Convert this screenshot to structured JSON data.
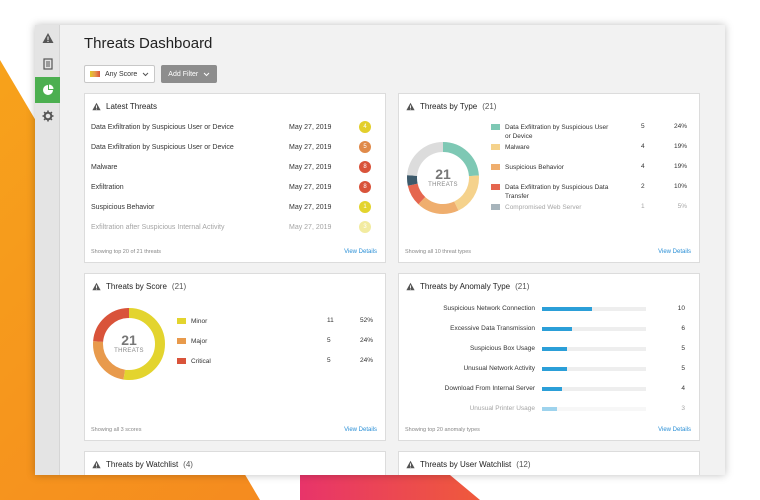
{
  "colors": {
    "accent_green": "#4caf50",
    "link": "#2a8fd6",
    "bar": "#2b9fd8",
    "score_minor": "#e3d42e",
    "score_major": "#e89a4c",
    "score_critical": "#d9533a"
  },
  "sidebar": {
    "items": [
      {
        "icon": "warning-icon",
        "active": false
      },
      {
        "icon": "document-icon",
        "active": false
      },
      {
        "icon": "pie-chart-icon",
        "active": true
      },
      {
        "icon": "gear-icon",
        "active": false
      }
    ]
  },
  "header": {
    "title": "Threats Dashboard",
    "score_filter": "Any Score",
    "add_filter": "Add Filter"
  },
  "latest": {
    "title": "Latest Threats",
    "rows": [
      {
        "name": "Data Exfiltration by Suspicious User or Device",
        "date": "May 27, 2019",
        "score": "4",
        "color": "#e3cf2c"
      },
      {
        "name": "Data Exfiltration by Suspicious User or Device",
        "date": "May 27, 2019",
        "score": "5",
        "color": "#e08a4a"
      },
      {
        "name": "Malware",
        "date": "May 27, 2019",
        "score": "8",
        "color": "#d9533a"
      },
      {
        "name": "Exfiltration",
        "date": "May 27, 2019",
        "score": "8",
        "color": "#d9533a"
      },
      {
        "name": "Suspicious Behavior",
        "date": "May 27, 2019",
        "score": "1",
        "color": "#e3d42e"
      },
      {
        "name": "Exfiltration after Suspicious Internal Activity",
        "date": "May 27, 2019",
        "score": "3",
        "color": "#e3d42e"
      }
    ],
    "footer": "Showing top 20 of 21 threats",
    "link": "View Details"
  },
  "by_type": {
    "title": "Threats by Type",
    "count": "(21)",
    "total": "21",
    "total_label": "THREATS",
    "items": [
      {
        "label": "Data Exfiltration by Suspicious User or Device",
        "n": "5",
        "pct": "24%",
        "value": 5,
        "color": "#7ec8b4"
      },
      {
        "label": "Malware",
        "n": "4",
        "pct": "19%",
        "value": 4,
        "color": "#f5d28c"
      },
      {
        "label": "Suspicious Behavior",
        "n": "4",
        "pct": "19%",
        "value": 4,
        "color": "#efae6e"
      },
      {
        "label": "Data Exfiltration by Suspicious Data Transfer",
        "n": "2",
        "pct": "10%",
        "value": 2,
        "color": "#e5664f"
      },
      {
        "label": "Compromised Web Server",
        "n": "1",
        "pct": "5%",
        "value": 1,
        "color": "#3d5a6b"
      }
    ],
    "rest_value": 5,
    "rest_color": "#dcdcdc",
    "footer": "Showing all 10 threat types",
    "link": "View Details"
  },
  "by_score": {
    "title": "Threats by Score",
    "count": "(21)",
    "total": "21",
    "total_label": "THREATS",
    "items": [
      {
        "label": "Minor",
        "n": "11",
        "pct": "52%",
        "value": 11,
        "color": "#e3d42e"
      },
      {
        "label": "Major",
        "n": "5",
        "pct": "24%",
        "value": 5,
        "color": "#e89a4c"
      },
      {
        "label": "Critical",
        "n": "5",
        "pct": "24%",
        "value": 5,
        "color": "#d9533a"
      }
    ],
    "footer": "Showing all 3 scores",
    "link": "View Details"
  },
  "by_anomaly": {
    "title": "Threats by Anomaly Type",
    "count": "(21)",
    "max": 10,
    "items": [
      {
        "label": "Suspicious Network Connection",
        "value": 10
      },
      {
        "label": "Excessive Data Transmission",
        "value": 6
      },
      {
        "label": "Suspicious Box Usage",
        "value": 5
      },
      {
        "label": "Unusual Network Activity",
        "value": 5
      },
      {
        "label": "Download From Internal Server",
        "value": 4
      },
      {
        "label": "Unusual Printer Usage",
        "value": 3
      }
    ],
    "footer": "Showing top 20 anomaly types",
    "link": "View Details"
  },
  "watchlist": {
    "title": "Threats by Watchlist",
    "count": "(4)"
  },
  "user_watchlist": {
    "title": "Threats by User Watchlist",
    "count": "(12)"
  }
}
